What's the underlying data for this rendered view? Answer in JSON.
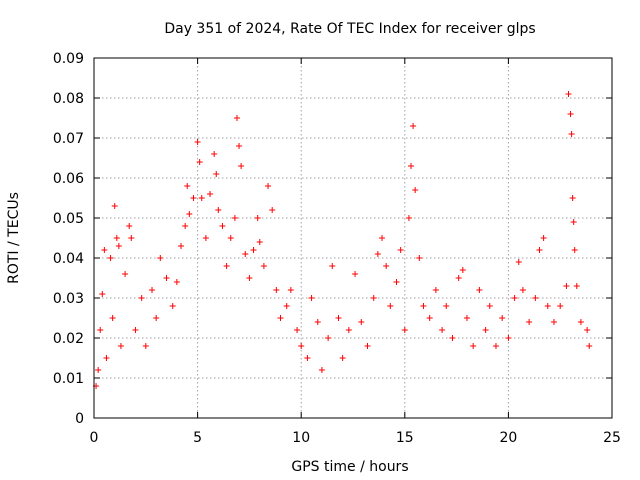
{
  "chart_data": {
    "type": "scatter",
    "title": "Day 351 of 2024, Rate Of TEC Index for receiver glps",
    "xlabel": "GPS time / hours",
    "ylabel": "ROTI / TECUs",
    "xlim": [
      0,
      25
    ],
    "ylim": [
      0,
      0.09
    ],
    "xticks": [
      "0",
      "5",
      "10",
      "15",
      "20",
      "25"
    ],
    "yticks": [
      "0",
      "0.01",
      "0.02",
      "0.03",
      "0.04",
      "0.05",
      "0.06",
      "0.07",
      "0.08",
      "0.09"
    ],
    "grid": true,
    "marker": "+",
    "color": "#ff0000",
    "series": [
      {
        "points": [
          [
            0.1,
            0.008
          ],
          [
            0.2,
            0.012
          ],
          [
            0.3,
            0.022
          ],
          [
            0.4,
            0.031
          ],
          [
            0.5,
            0.042
          ],
          [
            0.6,
            0.015
          ],
          [
            0.8,
            0.04
          ],
          [
            0.9,
            0.025
          ],
          [
            1.0,
            0.053
          ],
          [
            1.1,
            0.045
          ],
          [
            1.2,
            0.043
          ],
          [
            1.3,
            0.018
          ],
          [
            1.5,
            0.036
          ],
          [
            1.7,
            0.048
          ],
          [
            1.8,
            0.045
          ],
          [
            2.0,
            0.022
          ],
          [
            2.3,
            0.03
          ],
          [
            2.5,
            0.018
          ],
          [
            2.8,
            0.032
          ],
          [
            3.0,
            0.025
          ],
          [
            3.2,
            0.04
          ],
          [
            3.5,
            0.035
          ],
          [
            3.8,
            0.028
          ],
          [
            4.0,
            0.034
          ],
          [
            4.2,
            0.043
          ],
          [
            4.4,
            0.048
          ],
          [
            4.5,
            0.058
          ],
          [
            4.6,
            0.051
          ],
          [
            4.8,
            0.055
          ],
          [
            5.0,
            0.069
          ],
          [
            5.1,
            0.064
          ],
          [
            5.2,
            0.055
          ],
          [
            5.4,
            0.045
          ],
          [
            5.6,
            0.056
          ],
          [
            5.8,
            0.066
          ],
          [
            5.9,
            0.061
          ],
          [
            6.0,
            0.052
          ],
          [
            6.2,
            0.048
          ],
          [
            6.4,
            0.038
          ],
          [
            6.6,
            0.045
          ],
          [
            6.8,
            0.05
          ],
          [
            6.9,
            0.075
          ],
          [
            7.0,
            0.068
          ],
          [
            7.1,
            0.063
          ],
          [
            7.3,
            0.041
          ],
          [
            7.5,
            0.035
          ],
          [
            7.7,
            0.042
          ],
          [
            7.9,
            0.05
          ],
          [
            8.0,
            0.044
          ],
          [
            8.2,
            0.038
          ],
          [
            8.4,
            0.058
          ],
          [
            8.6,
            0.052
          ],
          [
            8.8,
            0.032
          ],
          [
            9.0,
            0.025
          ],
          [
            9.3,
            0.028
          ],
          [
            9.5,
            0.032
          ],
          [
            9.8,
            0.022
          ],
          [
            10.0,
            0.018
          ],
          [
            10.3,
            0.015
          ],
          [
            10.5,
            0.03
          ],
          [
            10.8,
            0.024
          ],
          [
            11.0,
            0.012
          ],
          [
            11.3,
            0.02
          ],
          [
            11.5,
            0.038
          ],
          [
            11.8,
            0.025
          ],
          [
            12.0,
            0.015
          ],
          [
            12.3,
            0.022
          ],
          [
            12.6,
            0.036
          ],
          [
            12.9,
            0.024
          ],
          [
            13.2,
            0.018
          ],
          [
            13.5,
            0.03
          ],
          [
            13.7,
            0.041
          ],
          [
            13.9,
            0.045
          ],
          [
            14.1,
            0.038
          ],
          [
            14.3,
            0.028
          ],
          [
            14.6,
            0.034
          ],
          [
            14.8,
            0.042
          ],
          [
            15.0,
            0.022
          ],
          [
            15.2,
            0.05
          ],
          [
            15.3,
            0.063
          ],
          [
            15.4,
            0.073
          ],
          [
            15.5,
            0.057
          ],
          [
            15.7,
            0.04
          ],
          [
            15.9,
            0.028
          ],
          [
            16.2,
            0.025
          ],
          [
            16.5,
            0.032
          ],
          [
            16.8,
            0.022
          ],
          [
            17.0,
            0.028
          ],
          [
            17.3,
            0.02
          ],
          [
            17.6,
            0.035
          ],
          [
            17.8,
            0.037
          ],
          [
            18.0,
            0.025
          ],
          [
            18.3,
            0.018
          ],
          [
            18.6,
            0.032
          ],
          [
            18.9,
            0.022
          ],
          [
            19.1,
            0.028
          ],
          [
            19.4,
            0.018
          ],
          [
            19.7,
            0.025
          ],
          [
            20.0,
            0.02
          ],
          [
            20.3,
            0.03
          ],
          [
            20.5,
            0.039
          ],
          [
            20.7,
            0.032
          ],
          [
            21.0,
            0.024
          ],
          [
            21.3,
            0.03
          ],
          [
            21.5,
            0.042
          ],
          [
            21.7,
            0.045
          ],
          [
            21.9,
            0.028
          ],
          [
            22.2,
            0.024
          ],
          [
            22.5,
            0.028
          ],
          [
            22.8,
            0.033
          ],
          [
            22.9,
            0.081
          ],
          [
            23.0,
            0.076
          ],
          [
            23.05,
            0.071
          ],
          [
            23.1,
            0.055
          ],
          [
            23.15,
            0.049
          ],
          [
            23.2,
            0.042
          ],
          [
            23.3,
            0.033
          ],
          [
            23.5,
            0.024
          ],
          [
            23.8,
            0.022
          ],
          [
            23.9,
            0.018
          ]
        ]
      }
    ]
  }
}
